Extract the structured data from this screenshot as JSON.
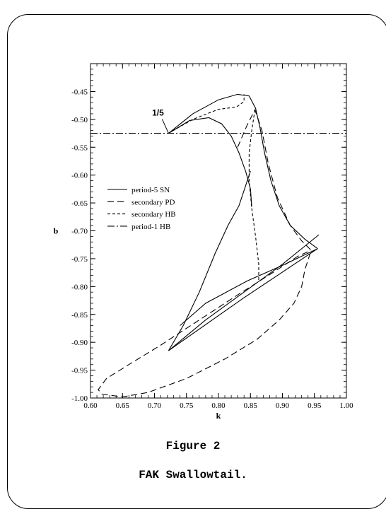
{
  "figure_number": "Figure 2",
  "figure_caption": "FAK Swallowtail.",
  "chart_data": {
    "type": "line",
    "xlabel": "k",
    "ylabel": "b",
    "xlim": [
      0.6,
      1.0
    ],
    "ylim": [
      -1.0,
      -0.4
    ],
    "x_ticks": [
      "0.60",
      "0.65",
      "0.70",
      "0.75",
      "0.80",
      "0.85",
      "0.90",
      "0.95",
      "1.00"
    ],
    "y_ticks": [
      "-0.45",
      "-0.50",
      "-0.55",
      "-0.60",
      "-0.65",
      "-0.70",
      "-0.75",
      "-0.80",
      "-0.85",
      "-0.90",
      "-0.95",
      "-1.00"
    ],
    "grid": false,
    "legend_placement": "middle-left",
    "annotations": [
      {
        "text": "1/5",
        "x": 0.722,
        "y": -0.525
      }
    ],
    "series": [
      {
        "name": "period-5 SN",
        "style": "solid",
        "segments": [
          [
            [
              0.722,
              -0.525
            ],
            [
              0.755,
              -0.502
            ],
            [
              0.785,
              -0.497
            ],
            [
              0.805,
              -0.508
            ],
            [
              0.82,
              -0.53
            ],
            [
              0.832,
              -0.56
            ],
            [
              0.843,
              -0.595
            ],
            [
              0.85,
              -0.625
            ],
            [
              0.852,
              -0.657
            ]
          ],
          [
            [
              0.722,
              -0.525
            ],
            [
              0.76,
              -0.49
            ],
            [
              0.8,
              -0.465
            ],
            [
              0.83,
              -0.455
            ],
            [
              0.848,
              -0.458
            ],
            [
              0.858,
              -0.48
            ],
            [
              0.865,
              -0.515
            ],
            [
              0.872,
              -0.56
            ],
            [
              0.882,
              -0.61
            ],
            [
              0.895,
              -0.655
            ],
            [
              0.912,
              -0.69
            ],
            [
              0.935,
              -0.715
            ],
            [
              0.955,
              -0.732
            ]
          ],
          [
            [
              0.955,
              -0.732
            ],
            [
              0.84,
              -0.82
            ],
            [
              0.722,
              -0.915
            ]
          ],
          [
            [
              0.722,
              -0.915
            ],
            [
              0.745,
              -0.87
            ],
            [
              0.77,
              -0.81
            ],
            [
              0.795,
              -0.74
            ],
            [
              0.815,
              -0.69
            ],
            [
              0.832,
              -0.655
            ],
            [
              0.85,
              -0.593
            ]
          ],
          [
            [
              0.955,
              -0.732
            ],
            [
              0.9,
              -0.762
            ],
            [
              0.845,
              -0.79
            ],
            [
              0.78,
              -0.83
            ],
            [
              0.74,
              -0.87
            ]
          ],
          [
            [
              0.957,
              -0.707
            ],
            [
              0.9,
              -0.76
            ],
            [
              0.84,
              -0.81
            ],
            [
              0.78,
              -0.86
            ],
            [
              0.722,
              -0.915
            ]
          ]
        ]
      },
      {
        "name": "secondary PD",
        "style": "dashed",
        "segments": [
          [
            [
              0.83,
              -0.55
            ],
            [
              0.845,
              -0.51
            ],
            [
              0.857,
              -0.483
            ],
            [
              0.868,
              -0.52
            ],
            [
              0.878,
              -0.58
            ],
            [
              0.892,
              -0.64
            ],
            [
              0.912,
              -0.69
            ],
            [
              0.93,
              -0.718
            ],
            [
              0.945,
              -0.735
            ],
            [
              0.935,
              -0.77
            ],
            [
              0.93,
              -0.8
            ],
            [
              0.918,
              -0.83
            ],
            [
              0.895,
              -0.86
            ],
            [
              0.86,
              -0.895
            ],
            [
              0.81,
              -0.93
            ],
            [
              0.75,
              -0.965
            ],
            [
              0.69,
              -0.99
            ],
            [
              0.65,
              -0.998
            ],
            [
              0.618,
              -0.993
            ],
            [
              0.612,
              -0.985
            ],
            [
              0.625,
              -0.965
            ],
            [
              0.66,
              -0.94
            ],
            [
              0.71,
              -0.905
            ],
            [
              0.77,
              -0.86
            ],
            [
              0.83,
              -0.815
            ],
            [
              0.885,
              -0.775
            ],
            [
              0.925,
              -0.745
            ],
            [
              0.945,
              -0.735
            ]
          ]
        ]
      },
      {
        "name": "secondary HB",
        "style": "short-dashed",
        "segments": [
          [
            [
              0.722,
              -0.525
            ],
            [
              0.76,
              -0.5
            ],
            [
              0.8,
              -0.482
            ],
            [
              0.828,
              -0.478
            ],
            [
              0.84,
              -0.468
            ],
            [
              0.84,
              -0.455
            ]
          ],
          [
            [
              0.857,
              -0.483
            ],
            [
              0.852,
              -0.52
            ],
            [
              0.848,
              -0.56
            ],
            [
              0.848,
              -0.61
            ],
            [
              0.852,
              -0.66
            ],
            [
              0.858,
              -0.71
            ],
            [
              0.863,
              -0.76
            ],
            [
              0.863,
              -0.79
            ]
          ]
        ]
      },
      {
        "name": "period-1 HB",
        "style": "dash-dot",
        "segments": [
          [
            [
              0.6,
              -0.525
            ],
            [
              1.0,
              -0.525
            ]
          ]
        ]
      }
    ]
  }
}
